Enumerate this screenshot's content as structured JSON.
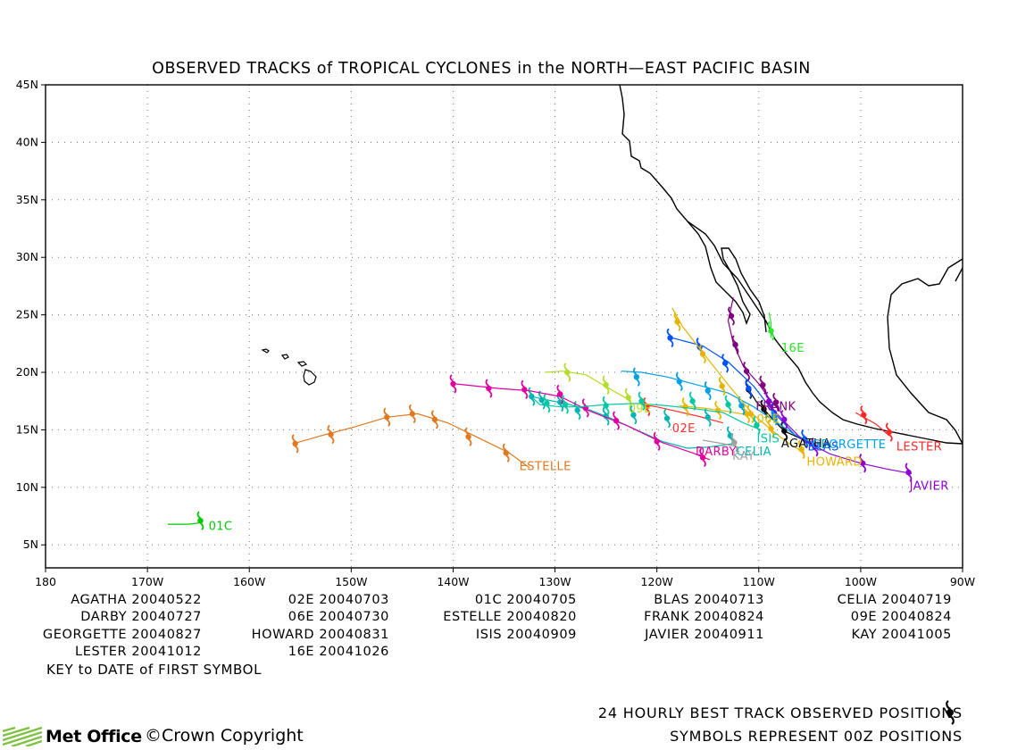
{
  "chart_data": {
    "type": "line",
    "title": "OBSERVED TRACKS of TROPICAL CYCLONES in the NORTH—EAST PACIFIC BASIN",
    "xlim": [
      -180,
      -90
    ],
    "ylim": [
      3,
      45
    ],
    "x_ticks": [
      {
        "v": -180,
        "label": "180"
      },
      {
        "v": -170,
        "label": "170W"
      },
      {
        "v": -160,
        "label": "160W"
      },
      {
        "v": -150,
        "label": "150W"
      },
      {
        "v": -140,
        "label": "140W"
      },
      {
        "v": -130,
        "label": "130W"
      },
      {
        "v": -120,
        "label": "120W"
      },
      {
        "v": -110,
        "label": "110W"
      },
      {
        "v": -100,
        "label": "100W"
      },
      {
        "v": -90,
        "label": "90W"
      }
    ],
    "y_ticks": [
      {
        "v": 5,
        "label": "5N"
      },
      {
        "v": 10,
        "label": "10N"
      },
      {
        "v": 15,
        "label": "15N"
      },
      {
        "v": 20,
        "label": "20N"
      },
      {
        "v": 25,
        "label": "25N"
      },
      {
        "v": 30,
        "label": "30N"
      },
      {
        "v": 35,
        "label": "35N"
      },
      {
        "v": 40,
        "label": "40N"
      },
      {
        "v": 45,
        "label": "45N"
      }
    ],
    "grid": "dotted",
    "series": [
      {
        "name": "AGATHA",
        "color": "#000000",
        "label": "AGATHA",
        "label_pos": [
          -107.8,
          13.5
        ],
        "track": [
          [
            -104.8,
            13.8
          ],
          [
            -106.5,
            14.5
          ],
          [
            -107.5,
            14.9
          ],
          [
            -108.5,
            15.8
          ],
          [
            -109.5,
            16.8
          ],
          [
            -110.2,
            17.4
          ],
          [
            -111,
            18.5
          ]
        ],
        "symbols": [
          [
            -107.5,
            14.9
          ],
          [
            -109.5,
            16.8
          ],
          [
            -111,
            18.5
          ]
        ]
      },
      {
        "name": "02E",
        "color": "#ff3030",
        "label": "02E",
        "label_pos": [
          -118.5,
          14.8
        ],
        "track": [
          [
            -113.5,
            15.6
          ],
          [
            -116,
            16.2
          ],
          [
            -118,
            16.6
          ],
          [
            -120,
            17
          ],
          [
            -121.5,
            17.2
          ]
        ],
        "symbols": [
          [
            -121,
            17
          ]
        ]
      },
      {
        "name": "01C",
        "color": "#00c800",
        "label": "01C",
        "label_pos": [
          -164,
          6.3
        ],
        "track": [
          [
            -168,
            6.8
          ],
          [
            -166,
            6.8
          ],
          [
            -165,
            6.9
          ],
          [
            -164.8,
            7.4
          ]
        ],
        "symbols": [
          [
            -164.8,
            7.1
          ]
        ]
      },
      {
        "name": "BLAS",
        "color": "#0050ff",
        "label": "BLAS",
        "label_pos": [
          -105.2,
          13.2
        ],
        "track": [
          [
            -104.5,
            13.5
          ],
          [
            -106.5,
            14.6
          ],
          [
            -108.5,
            16.5
          ],
          [
            -110.5,
            18.8
          ],
          [
            -113,
            20.9
          ],
          [
            -115.5,
            22.3
          ],
          [
            -118.5,
            23
          ]
        ],
        "symbols": [
          [
            -105.5,
            14.2
          ],
          [
            -108.5,
            16.5
          ],
          [
            -111,
            18.6
          ],
          [
            -113.3,
            20.8
          ],
          [
            -115.8,
            22.2
          ],
          [
            -118.7,
            23
          ]
        ]
      },
      {
        "name": "CELIA",
        "color": "#00b4b4",
        "label": "CELIA",
        "label_pos": [
          -112.2,
          12.8
        ],
        "track": [
          [
            -112.5,
            13.8
          ],
          [
            -115,
            13.5
          ],
          [
            -117,
            13.4
          ],
          [
            -119.5,
            14
          ],
          [
            -122,
            15
          ],
          [
            -124.5,
            16
          ],
          [
            -126.5,
            16.7
          ],
          [
            -129,
            17.3
          ],
          [
            -130.8,
            17.6
          ],
          [
            -132.3,
            17.9
          ]
        ],
        "symbols": [
          [
            -112.8,
            14.5
          ],
          [
            -115,
            16.1
          ],
          [
            -119,
            16
          ],
          [
            -122.3,
            16.3
          ],
          [
            -125,
            16.2
          ],
          [
            -127.8,
            16.7
          ],
          [
            -129.5,
            17.4
          ],
          [
            -131.3,
            17.6
          ],
          [
            -132.3,
            17.9
          ]
        ]
      },
      {
        "name": "DARBY",
        "color": "#e000a0",
        "label": "DARBY",
        "label_pos": [
          -116.2,
          12.8
        ],
        "track": [
          [
            -114.8,
            12.4
          ],
          [
            -116.5,
            13
          ],
          [
            -119.5,
            13.9
          ],
          [
            -123,
            15.4
          ],
          [
            -126.5,
            16.6
          ],
          [
            -129.5,
            17.9
          ],
          [
            -132.5,
            18.4
          ],
          [
            -135.5,
            18.6
          ],
          [
            -139.8,
            19
          ]
        ],
        "symbols": [
          [
            -115.5,
            12.6
          ],
          [
            -120,
            14
          ],
          [
            -124,
            15.8
          ],
          [
            -127,
            16.9
          ],
          [
            -129.5,
            18.1
          ],
          [
            -133,
            18.5
          ],
          [
            -136.5,
            18.6
          ],
          [
            -140,
            19
          ]
        ]
      },
      {
        "name": "06E",
        "color": "#e6b800",
        "label": "06E",
        "label_pos": [
          -110.2,
          15.6
        ],
        "track": [
          [
            -110.5,
            16.2
          ],
          [
            -113,
            16.6
          ],
          [
            -115.5,
            16.9
          ],
          [
            -117.8,
            17.1
          ]
        ],
        "symbols": [
          [
            -111.2,
            16.4
          ],
          [
            -114,
            16.7
          ],
          [
            -117.2,
            17
          ]
        ]
      },
      {
        "name": "ESTELLE",
        "color": "#e07820",
        "label": "ESTELLE",
        "label_pos": [
          -133.5,
          11.5
        ],
        "track": [
          [
            -132.5,
            11.7
          ],
          [
            -134.5,
            13
          ],
          [
            -137.5,
            14.3
          ],
          [
            -140.5,
            15.6
          ],
          [
            -143.5,
            16.4
          ],
          [
            -146.5,
            16.1
          ],
          [
            -149.5,
            15.3
          ],
          [
            -152.5,
            14.6
          ],
          [
            -155.7,
            13.8
          ]
        ],
        "symbols": [
          [
            -134.8,
            13
          ],
          [
            -138.5,
            14.4
          ],
          [
            -141.8,
            15.9
          ],
          [
            -144,
            16.4
          ],
          [
            -146.5,
            16.1
          ],
          [
            -152,
            14.6
          ],
          [
            -155.5,
            13.8
          ]
        ]
      },
      {
        "name": "FRANK",
        "color": "#800080",
        "label": "FRANK",
        "label_pos": [
          -110.3,
          16.7
        ],
        "track": [
          [
            -107.8,
            16.5
          ],
          [
            -108.8,
            17.5
          ],
          [
            -110,
            19
          ],
          [
            -111.5,
            20.5
          ],
          [
            -112.5,
            22.5
          ],
          [
            -113,
            24.5
          ],
          [
            -112.5,
            26.5
          ]
        ],
        "symbols": [
          [
            -108.3,
            17.4
          ],
          [
            -109.6,
            18.9
          ],
          [
            -111.2,
            20.1
          ],
          [
            -112.3,
            22.4
          ],
          [
            -112.7,
            24.9
          ]
        ]
      },
      {
        "name": "09E",
        "color": "#b4dc28",
        "label": "09E",
        "label_pos": [
          -122.8,
          16.5
        ],
        "track": [
          [
            -122.5,
            17.5
          ],
          [
            -124.5,
            18.5
          ],
          [
            -127,
            19.8
          ],
          [
            -129.3,
            20.1
          ],
          [
            -131,
            20
          ]
        ],
        "symbols": [
          [
            -122.8,
            17.8
          ],
          [
            -125,
            18.9
          ],
          [
            -128.8,
            20
          ]
        ]
      },
      {
        "name": "GEORGETTE",
        "color": "#00a0e6",
        "label": "GEORGETTE",
        "label_pos": [
          -104.8,
          13.4
        ],
        "track": [
          [
            -104.5,
            13.8
          ],
          [
            -106.5,
            14.6
          ],
          [
            -108.5,
            15.8
          ],
          [
            -110.5,
            17
          ],
          [
            -113,
            18.2
          ],
          [
            -116,
            18.9
          ],
          [
            -119,
            19.6
          ],
          [
            -121.5,
            20
          ],
          [
            -123.5,
            20.1
          ]
        ],
        "symbols": [
          [
            -108.5,
            16.2
          ],
          [
            -111.7,
            17.1
          ],
          [
            -115,
            18.4
          ],
          [
            -117.8,
            19.2
          ],
          [
            -122,
            19.6
          ]
        ]
      },
      {
        "name": "HOWARD",
        "color": "#e6b400",
        "label": "HOWARD",
        "label_pos": [
          -105.3,
          11.9
        ],
        "track": [
          [
            -105.5,
            13
          ],
          [
            -107,
            13.8
          ],
          [
            -108.5,
            14.8
          ],
          [
            -110.5,
            16.3
          ],
          [
            -112.8,
            18.7
          ],
          [
            -114.5,
            20.6
          ],
          [
            -116,
            22.3
          ],
          [
            -117.5,
            24
          ],
          [
            -118.5,
            25.6
          ]
        ],
        "symbols": [
          [
            -105.8,
            13.3
          ],
          [
            -108.8,
            15.1
          ],
          [
            -110.8,
            16.4
          ],
          [
            -113.6,
            18.8
          ],
          [
            -115.5,
            21.6
          ],
          [
            -118,
            24.4
          ]
        ]
      },
      {
        "name": "ISIS",
        "color": "#00c8a0",
        "label": "ISIS",
        "label_pos": [
          -110.2,
          13.9
        ],
        "track": [
          [
            -109.8,
            15
          ],
          [
            -111.5,
            15.6
          ],
          [
            -113.5,
            16.5
          ],
          [
            -116,
            16.8
          ],
          [
            -119,
            17.1
          ],
          [
            -122,
            17.3
          ],
          [
            -125,
            17.2
          ],
          [
            -127.5,
            17
          ],
          [
            -129.5,
            17
          ],
          [
            -131.5,
            17.2
          ],
          [
            -132.2,
            17.8
          ]
        ],
        "symbols": [
          [
            -110.2,
            15.4
          ],
          [
            -113,
            17.2
          ],
          [
            -116.5,
            17.5
          ],
          [
            -121.5,
            17.5
          ],
          [
            -125,
            17.1
          ],
          [
            -129,
            17.2
          ],
          [
            -130.8,
            17.3
          ]
        ]
      },
      {
        "name": "JAVIER",
        "color": "#8c00d2",
        "label": "JAVIER",
        "label_pos": [
          -95.2,
          9.8
        ],
        "track": [
          [
            -95,
            11.2
          ],
          [
            -97.5,
            11.6
          ],
          [
            -100,
            12.1
          ],
          [
            -103,
            12.9
          ],
          [
            -105.8,
            14.2
          ],
          [
            -108,
            16.2
          ],
          [
            -109.5,
            17.6
          ]
        ],
        "symbols": [
          [
            -95.3,
            11.3
          ],
          [
            -99.8,
            12.1
          ],
          [
            -104.5,
            13.5
          ],
          [
            -107.5,
            15.9
          ],
          [
            -109,
            17.5
          ]
        ]
      },
      {
        "name": "KAY",
        "color": "#a0a0a0",
        "label": "KAY",
        "label_pos": [
          -112.6,
          12.4
        ],
        "track": [
          [
            -112,
            13.5
          ],
          [
            -113.5,
            13.8
          ],
          [
            -115.5,
            14.1
          ]
        ],
        "symbols": [
          [
            -112.4,
            13.9
          ]
        ]
      },
      {
        "name": "LESTER",
        "color": "#ff2828",
        "label": "LESTER",
        "label_pos": [
          -96.5,
          13.2
        ],
        "track": [
          [
            -97.2,
            14.5
          ],
          [
            -98.5,
            15.5
          ],
          [
            -100.5,
            16.5
          ]
        ],
        "symbols": [
          [
            -97.2,
            14.8
          ],
          [
            -99.7,
            16.3
          ]
        ]
      },
      {
        "name": "16E",
        "color": "#28e628",
        "label": "16E",
        "label_pos": [
          -107.8,
          21.8
        ],
        "track": [
          [
            -108.8,
            23
          ],
          [
            -108.8,
            24.3
          ],
          [
            -109,
            25.2
          ]
        ],
        "symbols": [
          [
            -108.8,
            23.6
          ]
        ]
      }
    ]
  },
  "legend_rows": [
    [
      {
        "name": "AGATHA",
        "date": "20040522"
      },
      {
        "name": "02E",
        "date": "20040703"
      },
      {
        "name": "01C",
        "date": "20040705"
      },
      {
        "name": "BLAS",
        "date": "20040713"
      },
      {
        "name": "CELIA",
        "date": "20040719"
      }
    ],
    [
      {
        "name": "DARBY",
        "date": "20040727"
      },
      {
        "name": "06E",
        "date": "20040730"
      },
      {
        "name": "ESTELLE",
        "date": "20040820"
      },
      {
        "name": "FRANK",
        "date": "20040824"
      },
      {
        "name": "09E",
        "date": "20040824"
      }
    ],
    [
      {
        "name": "GEORGETTE",
        "date": "20040827"
      },
      {
        "name": "HOWARD",
        "date": "20040831"
      },
      {
        "name": "ISIS",
        "date": "20040909"
      },
      {
        "name": "JAVIER",
        "date": "20040911"
      },
      {
        "name": "KAY",
        "date": "20041005"
      }
    ],
    [
      {
        "name": "LESTER",
        "date": "20041012"
      },
      {
        "name": "16E",
        "date": "20041026"
      }
    ]
  ],
  "key_note": "KEY to DATE of FIRST SYMBOL",
  "footer": {
    "line1": "24 HOURLY BEST TRACK OBSERVED POSITIONS",
    "line2": "SYMBOLS REPRESENT 00Z POSITIONS",
    "logo_text": "Met Office",
    "copyright": "©Crown Copyright"
  }
}
